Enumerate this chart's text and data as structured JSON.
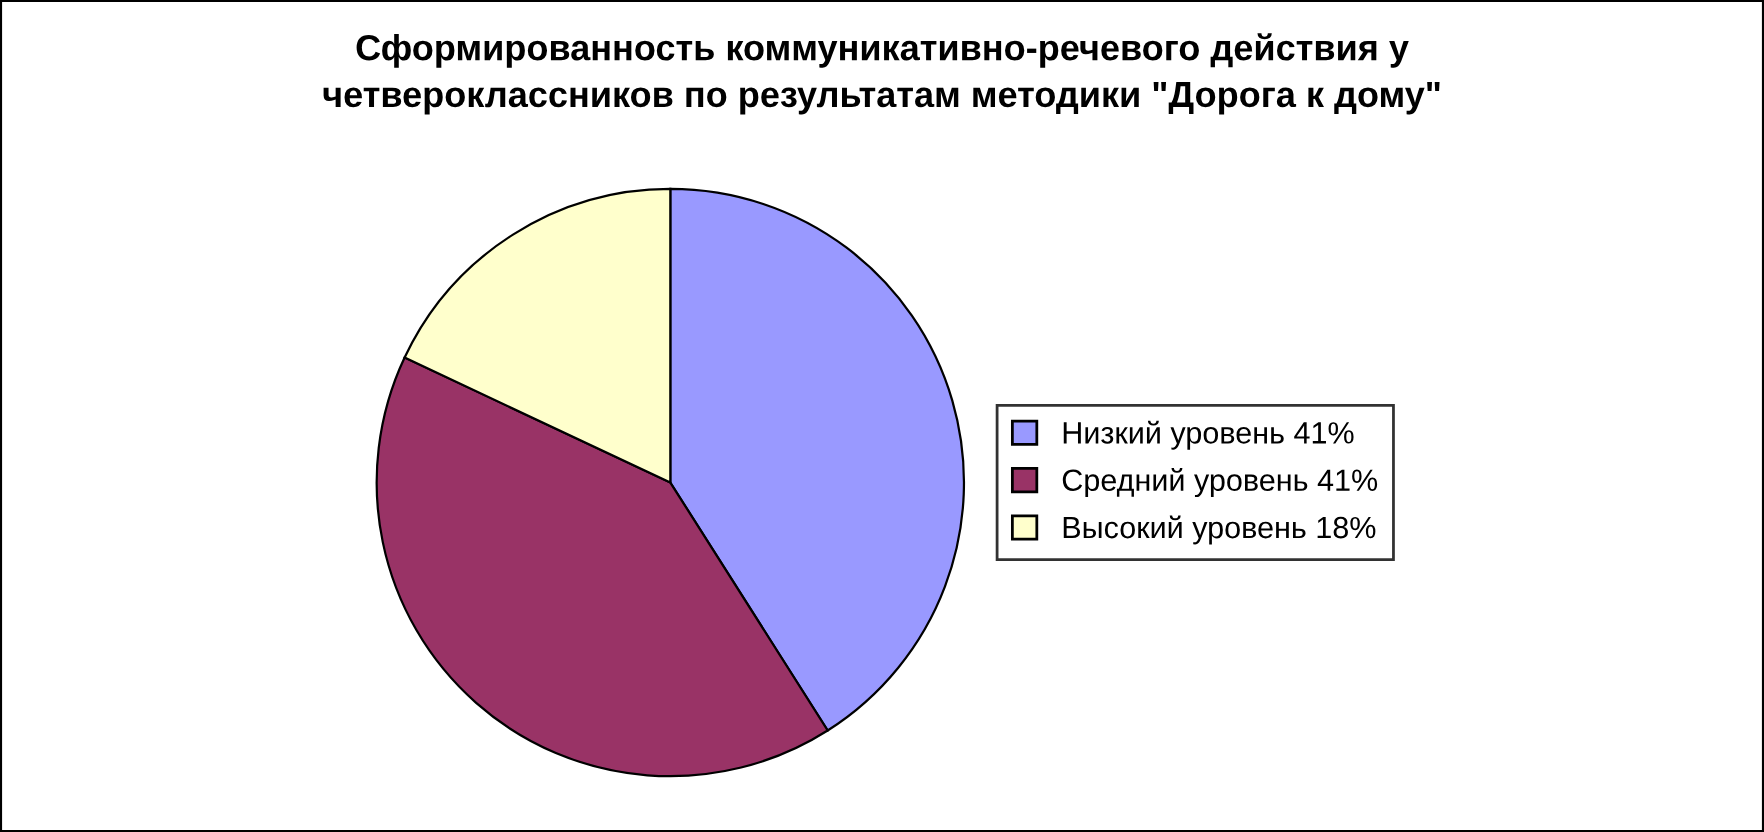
{
  "chart_data": {
    "type": "pie",
    "title": "Сформированность коммуникативно-речевого действия у\nчетвероклассников по результатам методики \"Дорога к дому\"",
    "categories": [
      "Низкий уровень 41%",
      "Средний уровень 41%",
      "Высокий уровень 18%"
    ],
    "values": [
      41,
      41,
      18
    ],
    "colors": [
      "#9999ff",
      "#993366",
      "#ffffcc"
    ],
    "legend": "right"
  }
}
